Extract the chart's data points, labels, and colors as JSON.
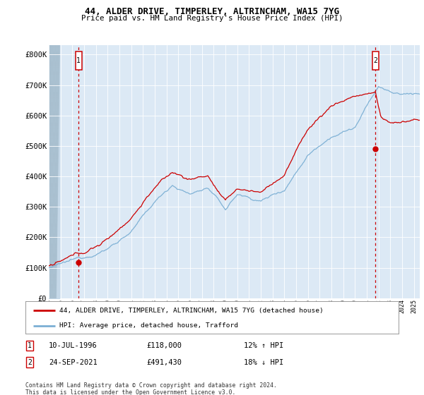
{
  "title1": "44, ALDER DRIVE, TIMPERLEY, ALTRINCHAM, WA15 7YG",
  "title2": "Price paid vs. HM Land Registry's House Price Index (HPI)",
  "ylabel_ticks": [
    "£0",
    "£100K",
    "£200K",
    "£300K",
    "£400K",
    "£500K",
    "£600K",
    "£700K",
    "£800K"
  ],
  "ytick_values": [
    0,
    100000,
    200000,
    300000,
    400000,
    500000,
    600000,
    700000,
    800000
  ],
  "ylim": [
    0,
    830000
  ],
  "xlim_start": 1994,
  "xlim_end": 2025.5,
  "sale1_date": "10-JUL-1996",
  "sale1_price": 118000,
  "sale1_label": "12% ↑ HPI",
  "sale1_x": 1996.53,
  "sale2_date": "24-SEP-2021",
  "sale2_price": 491430,
  "sale2_label": "18% ↓ HPI",
  "sale2_x": 2021.73,
  "legend_line1": "44, ALDER DRIVE, TIMPERLEY, ALTRINCHAM, WA15 7YG (detached house)",
  "legend_line2": "HPI: Average price, detached house, Trafford",
  "footnote": "Contains HM Land Registry data © Crown copyright and database right 2024.\nThis data is licensed under the Open Government Licence v3.0.",
  "hpi_color": "#7bafd4",
  "price_color": "#cc0000",
  "chart_bg": "#dce9f5",
  "grid_color": "#ffffff",
  "hatch_bg": "#c5d8e8",
  "dashed_color": "#cc0000"
}
